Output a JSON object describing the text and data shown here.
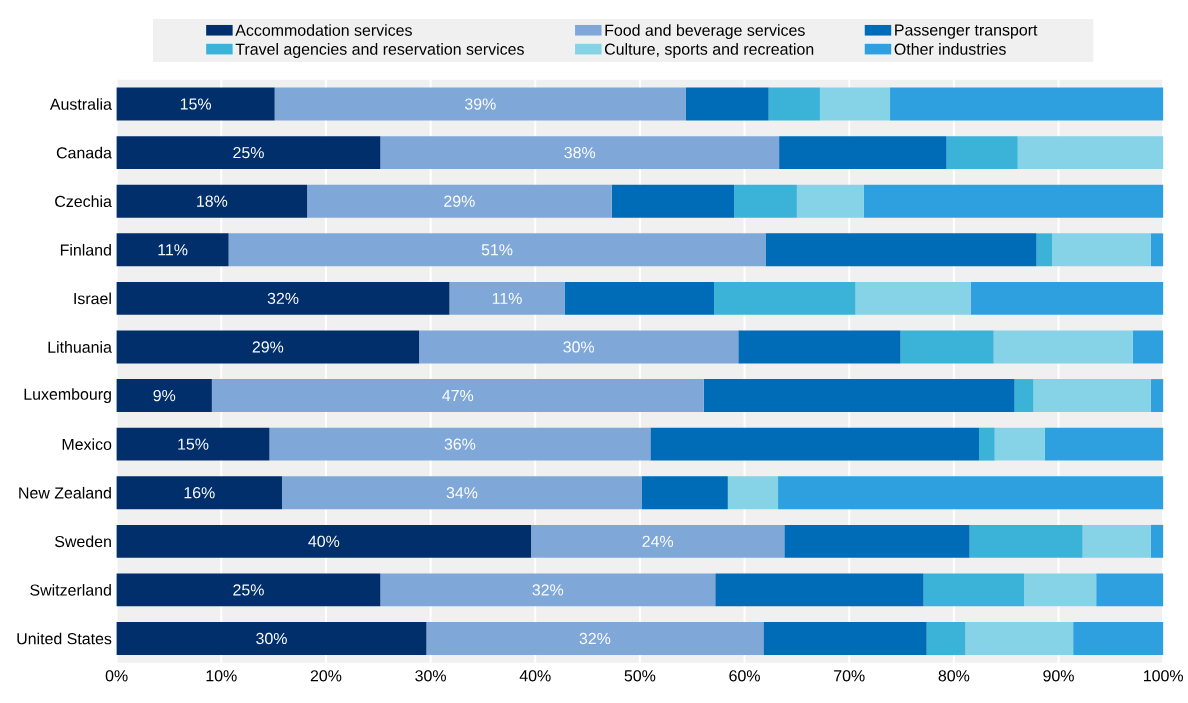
{
  "chart_data": {
    "type": "bar",
    "orientation": "horizontal",
    "stacked": true,
    "categories": [
      "Australia",
      "Canada",
      "Czechia",
      "Finland",
      "Israel",
      "Lithuania",
      "Luxembourg",
      "Mexico",
      "New Zealand",
      "Sweden",
      "Switzerland",
      "United States"
    ],
    "series": [
      {
        "name": "Accommodation services",
        "color": "#002f6c",
        "values": [
          15.1,
          25.2,
          18.2,
          10.7,
          31.8,
          28.9,
          9.1,
          14.6,
          15.8,
          39.6,
          25.2,
          29.6
        ],
        "value_labels": [
          "15%",
          "25%",
          "18%",
          "11%",
          "32%",
          "29%",
          "9%",
          "15%",
          "16%",
          "40%",
          "25%",
          "30%"
        ]
      },
      {
        "name": "Food and beverage services",
        "color": "#7fa8d9",
        "values": [
          39.3,
          38.1,
          29.1,
          51.3,
          11.0,
          30.5,
          47.0,
          36.4,
          34.4,
          24.2,
          32.0,
          32.2
        ],
        "value_labels": [
          "39%",
          "38%",
          "29%",
          "51%",
          "11%",
          "30%",
          "47%",
          "36%",
          "34%",
          "24%",
          "32%",
          "32%"
        ]
      },
      {
        "name": "Passenger transport",
        "color": "#006bb6",
        "values": [
          7.9,
          16.0,
          11.7,
          25.9,
          14.3,
          15.5,
          29.7,
          31.4,
          8.2,
          17.7,
          19.9,
          15.6
        ]
      },
      {
        "name": "Travel agencies and reservation services",
        "color": "#3bb3d8",
        "values": [
          4.9,
          6.8,
          6.0,
          1.5,
          13.5,
          8.9,
          1.8,
          1.5,
          0,
          10.8,
          9.6,
          3.7
        ]
      },
      {
        "name": "Culture, sports and recreation",
        "color": "#86d2e6",
        "values": [
          6.7,
          13.9,
          6.4,
          9.4,
          11.0,
          13.3,
          11.2,
          4.8,
          4.8,
          6.5,
          6.9,
          10.3
        ]
      },
      {
        "name": "Other industries",
        "color": "#2ea0e0",
        "values": [
          26.1,
          0,
          28.6,
          1.2,
          18.4,
          2.9,
          1.2,
          11.3,
          36.8,
          1.2,
          6.4,
          8.6
        ]
      }
    ],
    "xlim": [
      0,
      100
    ],
    "xticks": [
      {
        "value": 0,
        "label": "0%"
      },
      {
        "value": 10,
        "label": "10%"
      },
      {
        "value": 20,
        "label": "20%"
      },
      {
        "value": 30,
        "label": "30%"
      },
      {
        "value": 40,
        "label": "40%"
      },
      {
        "value": 50,
        "label": "50%"
      },
      {
        "value": 60,
        "label": "60%"
      },
      {
        "value": 70,
        "label": "70%"
      },
      {
        "value": 80,
        "label": "80%"
      },
      {
        "value": 90,
        "label": "90%"
      },
      {
        "value": 100,
        "label": "100%"
      }
    ],
    "grid": "x",
    "legend": "top"
  }
}
